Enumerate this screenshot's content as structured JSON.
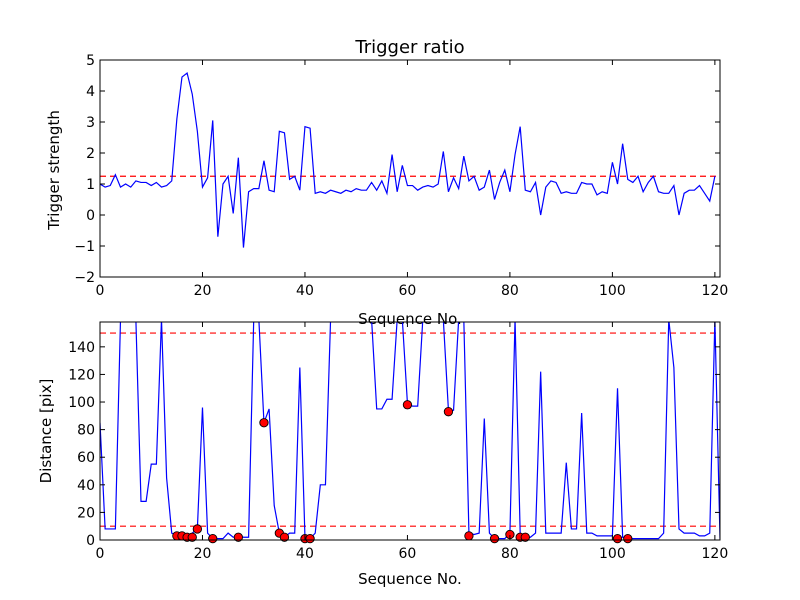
{
  "chart_data": [
    {
      "type": "line",
      "title": "Trigger ratio",
      "xlabel": "Sequence No.",
      "ylabel": "Trigger strength",
      "xlim": [
        0,
        121
      ],
      "ylim": [
        -2,
        5
      ],
      "xticks": [
        0,
        20,
        40,
        60,
        80,
        100,
        120
      ],
      "yticks": [
        -2,
        -1,
        0,
        1,
        2,
        3,
        4,
        5
      ],
      "threshold": 1.25,
      "line_color": "#0000ff",
      "threshold_color": "#ff0000",
      "series": [
        {
          "values": [
            1.0,
            0.9,
            0.95,
            1.3,
            0.9,
            1.0,
            0.9,
            1.1,
            1.05,
            1.05,
            0.95,
            1.05,
            0.9,
            0.95,
            1.1,
            3.1,
            4.45,
            4.58,
            3.9,
            2.7,
            0.9,
            1.2,
            3.05,
            -0.7,
            1.0,
            1.25,
            0.05,
            1.85,
            -1.05,
            0.75,
            0.85,
            0.85,
            1.75,
            0.8,
            0.75,
            2.7,
            2.65,
            1.15,
            1.25,
            0.8,
            2.85,
            2.8,
            0.7,
            0.75,
            0.7,
            0.8,
            0.75,
            0.7,
            0.8,
            0.75,
            0.85,
            0.8,
            0.8,
            1.05,
            0.8,
            1.1,
            0.7,
            1.95,
            0.75,
            1.6,
            0.95,
            0.95,
            0.8,
            0.9,
            0.95,
            0.9,
            1.0,
            2.05,
            0.75,
            1.2,
            0.85,
            1.9,
            1.1,
            1.25,
            0.8,
            0.9,
            1.45,
            0.5,
            1.05,
            1.45,
            0.75,
            1.95,
            2.85,
            0.8,
            0.75,
            1.05,
            0.0,
            0.9,
            1.1,
            1.05,
            0.7,
            0.75,
            0.7,
            0.7,
            1.05,
            1.0,
            1.0,
            0.65,
            0.75,
            0.7,
            1.7,
            1.0,
            2.3,
            1.15,
            1.05,
            1.25,
            0.75,
            1.05,
            1.25,
            0.75,
            0.7,
            0.7,
            0.95,
            0.0,
            0.7,
            0.8,
            0.8,
            0.95,
            0.7,
            0.45,
            1.25
          ]
        }
      ]
    },
    {
      "type": "line",
      "xlabel": "Sequence No.",
      "ylabel": "Distance [pix]",
      "xlim": [
        0,
        121
      ],
      "ylim": [
        0,
        158
      ],
      "xticks": [
        0,
        20,
        40,
        60,
        80,
        100,
        120
      ],
      "yticks": [
        0,
        20,
        40,
        60,
        80,
        100,
        120,
        140
      ],
      "thresholds": [
        10,
        150
      ],
      "line_color": "#0000ff",
      "threshold_color": "#ff0000",
      "marker_color": "#ff0000",
      "series": [
        {
          "values": [
            85,
            8,
            8,
            8,
            160,
            160,
            160,
            160,
            28,
            28,
            55,
            55,
            160,
            45,
            5,
            3,
            3,
            2,
            5,
            8,
            96,
            5,
            1,
            1,
            1,
            5,
            2,
            3,
            2,
            2,
            160,
            160,
            85,
            95,
            25,
            5,
            2,
            5,
            5,
            125,
            2,
            1,
            5,
            40,
            40,
            160,
            160,
            160,
            160,
            160,
            160,
            160,
            160,
            160,
            95,
            95,
            102,
            102,
            160,
            160,
            99,
            97,
            97,
            160,
            160,
            160,
            160,
            160,
            94,
            94,
            160,
            160,
            5,
            4,
            5,
            88,
            5,
            1,
            1,
            1,
            5,
            160,
            5,
            2,
            2,
            5,
            122,
            5,
            5,
            5,
            5,
            56,
            8,
            8,
            92,
            5,
            5,
            3,
            3,
            3,
            3,
            110,
            2,
            1,
            1,
            1,
            1,
            1,
            1,
            1,
            5,
            160,
            125,
            8,
            5,
            5,
            5,
            3,
            3,
            5,
            160,
            1
          ]
        }
      ],
      "markers": {
        "x": [
          15,
          16,
          17,
          18,
          19,
          22,
          27,
          32,
          35,
          36,
          40,
          41,
          60,
          68,
          72,
          77,
          80,
          82,
          83,
          101,
          103
        ],
        "y": [
          3,
          3,
          2,
          2,
          8,
          1,
          2,
          85,
          5,
          2,
          1,
          1,
          98,
          93,
          3,
          1,
          4,
          2,
          2,
          1,
          1
        ]
      }
    }
  ]
}
